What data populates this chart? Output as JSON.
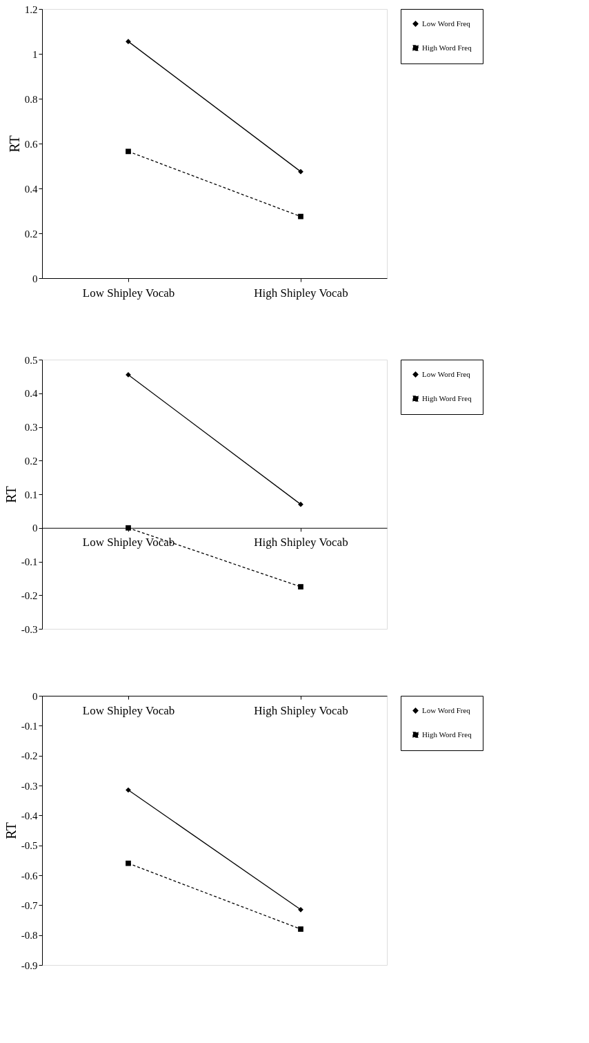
{
  "chart_data": [
    {
      "type": "line",
      "categories": [
        "Low Shipley Vocab",
        "High Shipley Vocab"
      ],
      "ylabel": "RT",
      "ylim": [
        0,
        1.2
      ],
      "yticks": [
        0,
        0.2,
        0.4,
        0.6,
        0.8,
        1,
        1.2
      ],
      "grid": false,
      "legend": "right",
      "series": [
        {
          "name": "Low Word Freq",
          "color": "#000000",
          "values": [
            1.055,
            0.475
          ],
          "marker": "diamond",
          "line_style": "solid"
        },
        {
          "name": "High Word Freq",
          "color": "#000000",
          "values": [
            0.565,
            0.275
          ],
          "marker": "square",
          "line_style": "dashed"
        }
      ]
    },
    {
      "type": "line",
      "categories": [
        "Low Shipley Vocab",
        "High Shipley Vocab"
      ],
      "ylabel": "RT",
      "ylim": [
        -0.3,
        0.5
      ],
      "yticks": [
        -0.3,
        -0.2,
        -0.1,
        0,
        0.1,
        0.2,
        0.3,
        0.4,
        0.5
      ],
      "grid": false,
      "legend": "right",
      "series": [
        {
          "name": "Low Word Freq",
          "color": "#000000",
          "values": [
            0.455,
            0.07
          ],
          "marker": "diamond",
          "line_style": "solid"
        },
        {
          "name": "High Word Freq",
          "color": "#000000",
          "values": [
            0.0,
            -0.175
          ],
          "marker": "square",
          "line_style": "dashed"
        }
      ]
    },
    {
      "type": "line",
      "categories": [
        "Low Shipley Vocab",
        "High Shipley Vocab"
      ],
      "ylabel": "RT",
      "ylim": [
        -0.9,
        0
      ],
      "yticks": [
        -0.9,
        -0.8,
        -0.7,
        -0.6,
        -0.5,
        -0.4,
        -0.3,
        -0.2,
        -0.1,
        0
      ],
      "grid": false,
      "legend": "right",
      "series": [
        {
          "name": "Low Word Freq",
          "color": "#000000",
          "values": [
            -0.315,
            -0.715
          ],
          "marker": "diamond",
          "line_style": "solid"
        },
        {
          "name": "High Word Freq",
          "color": "#000000",
          "values": [
            -0.56,
            -0.78
          ],
          "marker": "square",
          "line_style": "dashed"
        }
      ]
    }
  ]
}
